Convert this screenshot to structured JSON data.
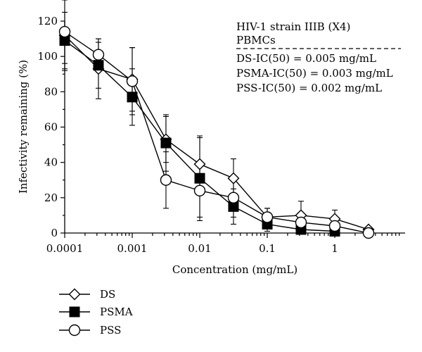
{
  "chart_data": {
    "type": "line",
    "xscale": "log",
    "xlabel": "Concentration (mg/mL)",
    "ylabel": "Infectivity remaining (%)",
    "xlim": [
      0.0001,
      5
    ],
    "ylim": [
      0,
      120
    ],
    "x_ticks": [
      {
        "value": 0.0001,
        "label": "0.0001"
      },
      {
        "value": 0.001,
        "label": "0.001"
      },
      {
        "value": 0.01,
        "label": "0.01"
      },
      {
        "value": 0.1,
        "label": "0.1"
      },
      {
        "value": 1,
        "label": "1"
      }
    ],
    "y_ticks": [
      {
        "value": 0,
        "label": "0"
      },
      {
        "value": 20,
        "label": "20"
      },
      {
        "value": 40,
        "label": "40"
      },
      {
        "value": 60,
        "label": "60"
      },
      {
        "value": 80,
        "label": "80"
      },
      {
        "value": 100,
        "label": "100"
      },
      {
        "value": 120,
        "label": "120"
      }
    ],
    "annotations": {
      "strain": "HIV-1 strain IIIB (X4)",
      "cells": "PBMCs",
      "ic50_lines": [
        "DS-IC(50) = 0.005 mg/mL",
        "PSMA-IC(50) = 0.003 mg/mL",
        "PSS-IC(50) = 0.002 mg/mL"
      ]
    },
    "x": [
      0.0001,
      0.000316,
      0.001,
      0.00316,
      0.01,
      0.0316,
      0.1,
      0.316,
      1,
      3.16
    ],
    "series": [
      {
        "name": "DS",
        "marker": "open-diamond",
        "values": [
          112,
          93,
          87,
          53,
          39,
          31,
          9,
          10,
          8,
          2
        ],
        "errors": [
          20,
          17,
          18,
          13,
          15,
          11,
          5,
          8,
          5,
          0
        ]
      },
      {
        "name": "PSMA",
        "marker": "filled-square",
        "values": [
          109,
          95,
          77,
          51,
          31,
          15,
          5,
          2,
          1,
          null
        ],
        "errors": [
          16,
          13,
          16,
          16,
          24,
          10,
          4,
          0,
          0,
          null
        ]
      },
      {
        "name": "PSS",
        "marker": "open-circle",
        "values": [
          114,
          101,
          86,
          30,
          24,
          20,
          9,
          6,
          4,
          0
        ],
        "errors": [
          18,
          9,
          19,
          16,
          15,
          11,
          5,
          3,
          3,
          0
        ]
      }
    ],
    "legend_position": "bottom-left",
    "grid": false
  }
}
